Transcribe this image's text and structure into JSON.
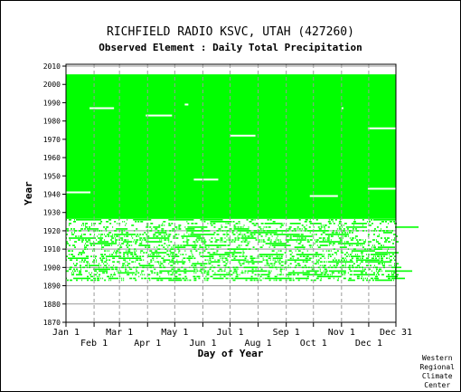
{
  "chart_data": {
    "type": "heatmap",
    "title": "RICHFIELD RADIO KSVC, UTAH   (427260)",
    "subtitle": "Observed Element : Daily Total Precipitation",
    "xlabel": "Day of Year",
    "ylabel": "Year",
    "ylim": [
      1870,
      2011
    ],
    "xlim_day": [
      1,
      365
    ],
    "y_ticks": [
      1870,
      1880,
      1890,
      1900,
      1910,
      1920,
      1930,
      1940,
      1950,
      1960,
      1970,
      1980,
      1990,
      2000,
      2010
    ],
    "x_ticks_top": [
      {
        "label": "Jan 1",
        "day": 1
      },
      {
        "label": "Mar 1",
        "day": 60
      },
      {
        "label": "May 1",
        "day": 121
      },
      {
        "label": "Jul 1",
        "day": 182
      },
      {
        "label": "Sep 1",
        "day": 244
      },
      {
        "label": "Nov 1",
        "day": 305
      },
      {
        "label": "Dec 31",
        "day": 365
      }
    ],
    "x_ticks_bottom": [
      {
        "label": "Feb 1",
        "day": 32
      },
      {
        "label": "Apr 1",
        "day": 91
      },
      {
        "label": "Jun 1",
        "day": 152
      },
      {
        "label": "Aug 1",
        "day": 213
      },
      {
        "label": "Oct 1",
        "day": 274
      },
      {
        "label": "Dec 1",
        "day": 335
      }
    ],
    "coverage": {
      "dense_period": [
        1927,
        2005
      ],
      "sparse_period": [
        1893,
        1926
      ],
      "missing_segments": [
        {
          "year": 1941,
          "start_day": 1,
          "end_day": 28
        },
        {
          "year": 1987,
          "start_day": 27,
          "end_day": 54
        },
        {
          "year": 1983,
          "start_day": 89,
          "end_day": 118
        },
        {
          "year": 1989,
          "start_day": 132,
          "end_day": 136
        },
        {
          "year": 1948,
          "start_day": 142,
          "end_day": 169
        },
        {
          "year": 1972,
          "start_day": 182,
          "end_day": 210
        },
        {
          "year": 1939,
          "start_day": 270,
          "end_day": 301
        },
        {
          "year": 1987,
          "start_day": 305,
          "end_day": 307
        },
        {
          "year": 1976,
          "start_day": 334,
          "end_day": 365
        },
        {
          "year": 1943,
          "start_day": 334,
          "end_day": 365
        }
      ]
    },
    "colors": {
      "data": "#00ff00",
      "gridline": "#9a9a9a",
      "axis": "#000000",
      "background": "#ffffff"
    }
  },
  "credit": [
    "Western",
    "Regional",
    "Climate",
    "Center"
  ]
}
